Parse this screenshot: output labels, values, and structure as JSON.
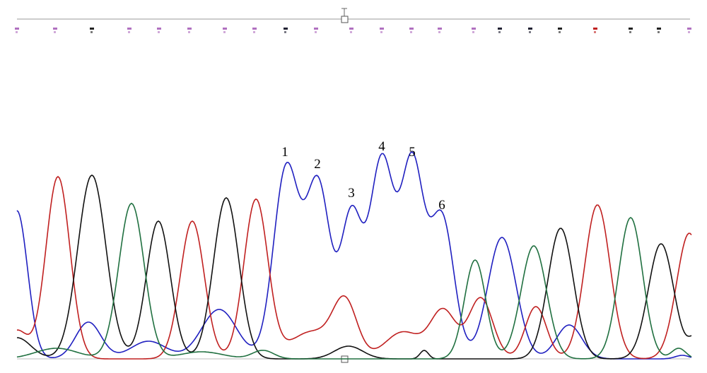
{
  "peak_labels": [
    "1",
    "2",
    "3",
    "4",
    "5",
    "6"
  ]
}
